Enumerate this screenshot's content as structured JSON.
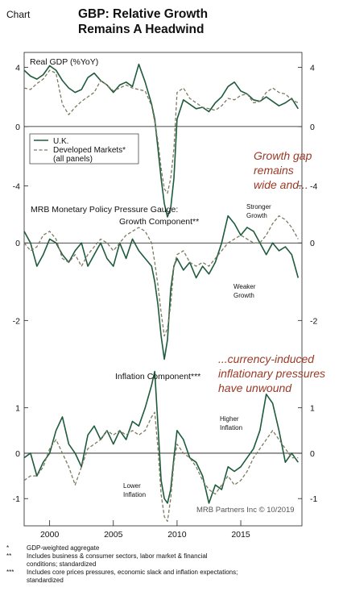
{
  "header": {
    "label": "Chart",
    "title_line1": "GBP: Relative Growth",
    "title_line2": "Remains A Headwind"
  },
  "legend": {
    "uk": "U.K.",
    "dm_line1": "Developed Markets*",
    "dm_line2": "(all panels)"
  },
  "callouts": {
    "growth_gap": [
      "Growth gap",
      "remains",
      "wide and..."
    ],
    "currency": [
      "...currency-induced",
      "inflationary pressures",
      "have unwound"
    ]
  },
  "credit": "MRB Partners Inc © 10/2019",
  "footnotes": [
    {
      "marker": "*",
      "lines": [
        "GDP-weighted aggregate"
      ]
    },
    {
      "marker": "**",
      "lines": [
        "Includes business & consumer sectors, labor market & financial",
        "conditions; standardized"
      ]
    },
    {
      "marker": "***",
      "lines": [
        "Includes core prices pressures, economic slack and inflation expectations;",
        "standardized"
      ]
    }
  ],
  "colors": {
    "uk": "#1e5b3c",
    "dm": "#7d7a60",
    "callout": "#9a3a26"
  },
  "chart_data": [
    {
      "type": "line",
      "title": "Real GDP (%YoY)",
      "x_ticks": [
        "2000",
        "2005",
        "2010",
        "2015"
      ],
      "xlim": [
        1998.0,
        2019.8
      ],
      "ylim": [
        -5.5,
        5
      ],
      "y_ticks": [
        "4",
        "0",
        "-4"
      ],
      "annotations": [],
      "series": [
        {
          "name": "U.K.",
          "x": [
            1998.0,
            1998.5,
            1999.0,
            1999.5,
            2000.0,
            2000.5,
            2001.0,
            2001.5,
            2002.0,
            2002.5,
            2003.0,
            2003.5,
            2004.0,
            2004.5,
            2005.0,
            2005.5,
            2006.0,
            2006.5,
            2007.0,
            2007.5,
            2008.0,
            2008.25,
            2008.5,
            2008.75,
            2009.0,
            2009.25,
            2009.5,
            2009.75,
            2010.0,
            2010.5,
            2011.0,
            2011.5,
            2012.0,
            2012.5,
            2013.0,
            2013.5,
            2014.0,
            2014.5,
            2015.0,
            2015.5,
            2016.0,
            2016.5,
            2017.0,
            2017.5,
            2018.0,
            2018.5,
            2019.0,
            2019.5
          ],
          "y": [
            3.8,
            3.4,
            3.2,
            3.5,
            4.1,
            3.8,
            3.1,
            2.6,
            2.3,
            2.5,
            3.3,
            3.6,
            3.1,
            2.8,
            2.3,
            2.8,
            3.0,
            2.7,
            4.2,
            3.0,
            1.5,
            0.5,
            -1.5,
            -3.5,
            -5.2,
            -6.1,
            -5.5,
            -3.5,
            0.5,
            1.8,
            1.5,
            1.2,
            1.3,
            1.0,
            1.6,
            2.0,
            2.7,
            3.0,
            2.4,
            2.2,
            1.8,
            1.7,
            2.0,
            1.7,
            1.4,
            1.6,
            1.9,
            1.2
          ]
        },
        {
          "name": "Developed Markets*",
          "x": [
            1998.0,
            1998.5,
            1999.0,
            1999.5,
            2000.0,
            2000.5,
            2001.0,
            2001.5,
            2002.0,
            2002.5,
            2003.0,
            2003.5,
            2004.0,
            2004.5,
            2005.0,
            2005.5,
            2006.0,
            2006.5,
            2007.0,
            2007.5,
            2008.0,
            2008.25,
            2008.5,
            2008.75,
            2009.0,
            2009.25,
            2009.5,
            2009.75,
            2010.0,
            2010.5,
            2011.0,
            2011.5,
            2012.0,
            2012.5,
            2013.0,
            2013.5,
            2014.0,
            2014.5,
            2015.0,
            2015.5,
            2016.0,
            2016.5,
            2017.0,
            2017.5,
            2018.0,
            2018.5,
            2019.0,
            2019.5
          ],
          "y": [
            2.6,
            2.5,
            2.9,
            3.2,
            3.8,
            3.6,
            1.5,
            0.8,
            1.3,
            1.7,
            2.0,
            2.3,
            3.1,
            2.8,
            2.4,
            2.6,
            2.8,
            2.6,
            2.5,
            2.4,
            1.4,
            0.3,
            -1.0,
            -2.8,
            -4.2,
            -4.5,
            -3.5,
            -1.5,
            2.3,
            2.6,
            1.9,
            1.6,
            1.3,
            1.2,
            1.1,
            1.4,
            1.9,
            1.8,
            2.1,
            2.2,
            1.6,
            1.7,
            2.3,
            2.6,
            2.3,
            2.2,
            1.8,
            1.6
          ]
        }
      ]
    },
    {
      "type": "line",
      "title": "MRB Monetary Policy Pressure Gauge:",
      "subtitle": "Growth Component**",
      "x_ticks": [
        "2000",
        "2005",
        "2010",
        "2015"
      ],
      "xlim": [
        1998.0,
        2019.8
      ],
      "ylim": [
        -3.2,
        0.9
      ],
      "y_ticks": [
        "0",
        "-2"
      ],
      "annotations": [
        "Stronger Growth",
        "Weaker Growth"
      ],
      "series": [
        {
          "name": "U.K.",
          "x": [
            1998.0,
            1998.5,
            1999.0,
            1999.5,
            2000.0,
            2000.5,
            2001.0,
            2001.5,
            2002.0,
            2002.5,
            2003.0,
            2003.5,
            2004.0,
            2004.5,
            2005.0,
            2005.5,
            2006.0,
            2006.5,
            2007.0,
            2007.5,
            2008.0,
            2008.25,
            2008.5,
            2008.75,
            2009.0,
            2009.25,
            2009.5,
            2009.75,
            2010.0,
            2010.5,
            2011.0,
            2011.5,
            2012.0,
            2012.5,
            2013.0,
            2013.5,
            2014.0,
            2014.5,
            2015.0,
            2015.5,
            2016.0,
            2016.5,
            2017.0,
            2017.5,
            2018.0,
            2018.5,
            2019.0,
            2019.5
          ],
          "y": [
            0.3,
            0.0,
            -0.6,
            -0.3,
            0.1,
            0.0,
            -0.3,
            -0.5,
            -0.2,
            0.0,
            -0.6,
            -0.3,
            0.0,
            -0.4,
            -0.6,
            0.0,
            -0.4,
            0.1,
            -0.2,
            -0.4,
            -0.6,
            -1.0,
            -1.6,
            -2.4,
            -3.0,
            -2.5,
            -1.2,
            -0.6,
            -0.4,
            -0.7,
            -0.5,
            -0.9,
            -0.6,
            -0.8,
            -0.5,
            0.0,
            0.7,
            0.5,
            0.2,
            0.4,
            0.3,
            0.0,
            -0.3,
            0.0,
            -0.2,
            -0.1,
            -0.3,
            -0.9
          ]
        },
        {
          "name": "Developed Markets*",
          "x": [
            1998.0,
            1998.5,
            1999.0,
            1999.5,
            2000.0,
            2000.5,
            2001.0,
            2001.5,
            2002.0,
            2002.5,
            2003.0,
            2003.5,
            2004.0,
            2004.5,
            2005.0,
            2005.5,
            2006.0,
            2006.5,
            2007.0,
            2007.5,
            2008.0,
            2008.25,
            2008.5,
            2008.75,
            2009.0,
            2009.25,
            2009.5,
            2009.75,
            2010.0,
            2010.5,
            2011.0,
            2011.5,
            2012.0,
            2012.5,
            2013.0,
            2013.5,
            2014.0,
            2014.5,
            2015.0,
            2015.5,
            2016.0,
            2016.5,
            2017.0,
            2017.5,
            2018.0,
            2018.5,
            2019.0,
            2019.5
          ],
          "y": [
            0.0,
            -0.2,
            -0.1,
            0.2,
            0.3,
            0.1,
            -0.4,
            -0.5,
            -0.3,
            -0.6,
            -0.3,
            -0.1,
            0.1,
            0.0,
            -0.2,
            0.0,
            0.2,
            0.3,
            0.4,
            0.3,
            0.0,
            -0.5,
            -1.1,
            -1.8,
            -2.4,
            -2.2,
            -1.6,
            -0.6,
            -0.3,
            -0.2,
            -0.5,
            -0.6,
            -0.5,
            -0.6,
            -0.4,
            -0.2,
            0.0,
            0.1,
            0.2,
            0.1,
            0.0,
            0.0,
            0.2,
            0.5,
            0.7,
            0.6,
            0.4,
            0.1
          ]
        }
      ]
    },
    {
      "type": "line",
      "title": "Inflation Component***",
      "x_ticks": [
        "2000",
        "2005",
        "2010",
        "2015"
      ],
      "xlim": [
        1998.0,
        2019.8
      ],
      "ylim": [
        -1.6,
        1.9
      ],
      "y_ticks": [
        "1",
        "0",
        "-1"
      ],
      "annotations": [
        "Higher Inflation",
        "Lower Inflation"
      ],
      "series": [
        {
          "name": "U.K.",
          "x": [
            1998.0,
            1998.5,
            1999.0,
            1999.5,
            2000.0,
            2000.5,
            2001.0,
            2001.5,
            2002.0,
            2002.5,
            2003.0,
            2003.5,
            2004.0,
            2004.5,
            2005.0,
            2005.5,
            2006.0,
            2006.5,
            2007.0,
            2007.5,
            2008.0,
            2008.25,
            2008.5,
            2008.75,
            2009.0,
            2009.25,
            2009.5,
            2009.75,
            2010.0,
            2010.5,
            2011.0,
            2011.5,
            2012.0,
            2012.5,
            2013.0,
            2013.5,
            2014.0,
            2014.5,
            2015.0,
            2015.5,
            2016.0,
            2016.5,
            2017.0,
            2017.5,
            2018.0,
            2018.5,
            2019.0,
            2019.5
          ],
          "y": [
            -0.1,
            0.0,
            -0.5,
            -0.2,
            0.0,
            0.5,
            0.8,
            0.2,
            0.0,
            -0.3,
            0.4,
            0.6,
            0.3,
            0.5,
            0.2,
            0.5,
            0.3,
            0.7,
            0.6,
            1.0,
            1.5,
            1.8,
            0.6,
            -0.6,
            -1.0,
            -1.1,
            -0.8,
            -0.1,
            0.5,
            0.3,
            -0.1,
            -0.2,
            -0.5,
            -1.1,
            -0.7,
            -0.8,
            -0.3,
            -0.4,
            -0.3,
            -0.1,
            0.1,
            0.5,
            1.3,
            1.1,
            0.5,
            -0.2,
            0.0,
            -0.2
          ]
        },
        {
          "name": "Developed Markets*",
          "x": [
            1998.0,
            1998.5,
            1999.0,
            1999.5,
            2000.0,
            2000.5,
            2001.0,
            2001.5,
            2002.0,
            2002.5,
            2003.0,
            2003.5,
            2004.0,
            2004.5,
            2005.0,
            2005.5,
            2006.0,
            2006.5,
            2007.0,
            2007.5,
            2008.0,
            2008.25,
            2008.5,
            2008.75,
            2009.0,
            2009.25,
            2009.5,
            2009.75,
            2010.0,
            2010.5,
            2011.0,
            2011.5,
            2012.0,
            2012.5,
            2013.0,
            2013.5,
            2014.0,
            2014.5,
            2015.0,
            2015.5,
            2016.0,
            2016.5,
            2017.0,
            2017.5,
            2018.0,
            2018.5,
            2019.0,
            2019.5
          ],
          "y": [
            -0.6,
            -0.5,
            -0.5,
            -0.3,
            0.1,
            0.3,
            0.0,
            -0.3,
            -0.7,
            -0.3,
            0.1,
            0.2,
            0.3,
            0.5,
            0.4,
            0.5,
            0.4,
            0.5,
            0.4,
            0.5,
            0.8,
            0.9,
            0.1,
            -0.9,
            -1.4,
            -1.5,
            -1.0,
            -0.2,
            0.2,
            0.0,
            -0.1,
            -0.3,
            -0.6,
            -0.8,
            -0.9,
            -0.7,
            -0.5,
            -0.7,
            -0.6,
            -0.4,
            -0.1,
            0.1,
            0.3,
            0.5,
            0.3,
            0.1,
            -0.1,
            -0.1
          ]
        }
      ]
    }
  ]
}
